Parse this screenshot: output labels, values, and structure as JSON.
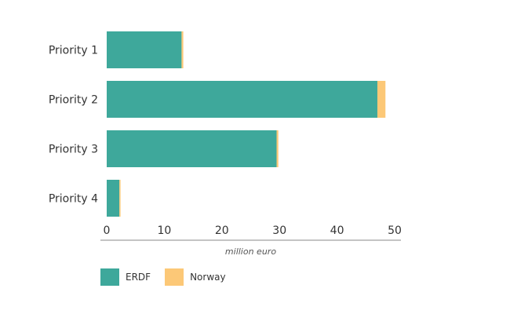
{
  "chart_data": {
    "type": "bar",
    "orientation": "horizontal",
    "stacked": true,
    "categories": [
      "Priority 1",
      "Priority 2",
      "Priority 3",
      "Priority 4"
    ],
    "series": [
      {
        "name": "ERDF",
        "values": [
          13.0,
          47.0,
          29.5,
          2.2
        ],
        "color": "#3ea89b"
      },
      {
        "name": "Norway",
        "values": [
          0.3,
          1.4,
          0.3,
          0.2
        ],
        "color": "#fcc877"
      }
    ],
    "xlabel": "million euro",
    "xlim": [
      0,
      50
    ],
    "xticks": [
      "0",
      "10",
      "20",
      "30",
      "40",
      "50"
    ],
    "grid": false,
    "legend_position": "bottom-left"
  },
  "colors": {
    "axis_line": "#888888",
    "text": "#333333"
  }
}
